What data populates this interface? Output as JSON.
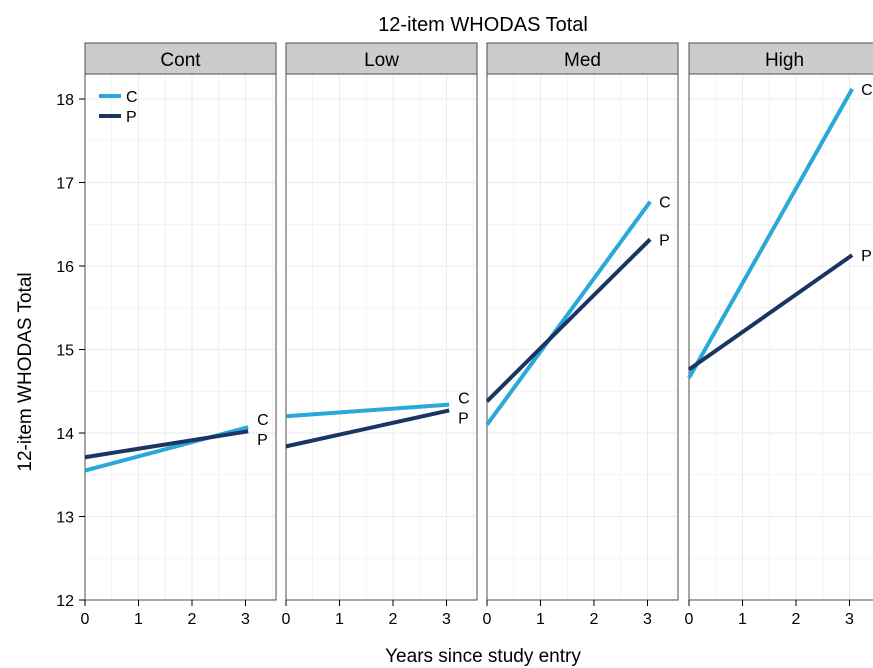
{
  "chart_data": {
    "type": "line",
    "title": "12-item WHODAS Total",
    "xlabel": "Years since study entry",
    "ylabel": "12-item WHODAS Total",
    "ylim": [
      12,
      18.5
    ],
    "xlim": [
      0,
      3.5
    ],
    "x_ticks": [
      "0",
      "1",
      "2",
      "3"
    ],
    "y_ticks": [
      "12",
      "13",
      "14",
      "15",
      "16",
      "17",
      "18"
    ],
    "grid": true,
    "legend": {
      "placement": "top-left",
      "entries": [
        {
          "label": "C",
          "color": "#29a9d9"
        },
        {
          "label": "P",
          "color": "#1b3563"
        }
      ]
    },
    "panels": [
      {
        "name": "Cont",
        "series": [
          {
            "name": "C",
            "color": "#29a9d9",
            "x": [
              0,
              3.05
            ],
            "y": [
              13.55,
              14.07
            ]
          },
          {
            "name": "P",
            "color": "#1b3563",
            "x": [
              0,
              3.05
            ],
            "y": [
              13.71,
              14.02
            ]
          }
        ]
      },
      {
        "name": "Low",
        "series": [
          {
            "name": "C",
            "color": "#29a9d9",
            "x": [
              0,
              3.05
            ],
            "y": [
              14.2,
              14.34
            ]
          },
          {
            "name": "P",
            "color": "#1b3563",
            "x": [
              0,
              3.05
            ],
            "y": [
              13.84,
              14.27
            ]
          }
        ]
      },
      {
        "name": "Med",
        "series": [
          {
            "name": "C",
            "color": "#29a9d9",
            "x": [
              0,
              3.05
            ],
            "y": [
              14.1,
              16.77
            ]
          },
          {
            "name": "P",
            "color": "#1b3563",
            "x": [
              0,
              3.05
            ],
            "y": [
              14.38,
              16.32
            ]
          }
        ]
      },
      {
        "name": "High",
        "series": [
          {
            "name": "C",
            "color": "#29a9d9",
            "x": [
              0,
              3.05
            ],
            "y": [
              14.66,
              18.12
            ]
          },
          {
            "name": "P",
            "color": "#1b3563",
            "x": [
              0,
              3.05
            ],
            "y": [
              14.76,
              16.13
            ]
          }
        ]
      }
    ]
  },
  "colors": {
    "panel_border": "#4d4d4d",
    "strip_fill": "#cccccc",
    "grid": "#ebebeb"
  }
}
